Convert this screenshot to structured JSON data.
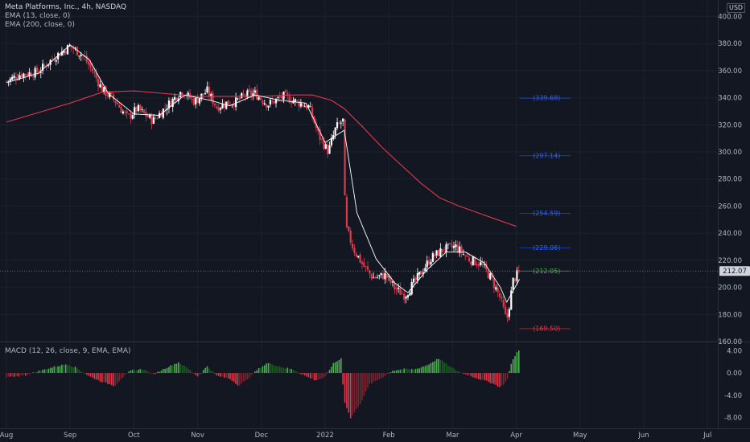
{
  "header": {
    "title": "Meta Platforms, Inc., 4h, NASDAQ",
    "ema13": "EMA (13, close, 0)",
    "ema200": "EMA (200, close, 0)",
    "currency": "USD"
  },
  "chart_data": [
    {
      "type": "candlestick",
      "title": "Meta Platforms, Inc., 4h, NASDAQ",
      "series": [
        {
          "name": "EMA (13, close, 0)",
          "color": "#ffffff"
        },
        {
          "name": "EMA (200, close, 0)",
          "color": "#e0384b"
        }
      ],
      "x_ticks": [
        "Aug",
        "Sep",
        "Oct",
        "Nov",
        "Dec",
        "2022",
        "Feb",
        "Mar",
        "Apr",
        "May",
        "Jun",
        "Jul"
      ],
      "y_ticks": [
        "400.00",
        "380.00",
        "360.00",
        "340.00",
        "320.00",
        "300.00",
        "280.00",
        "260.00",
        "240.00",
        "220.00",
        "200.00",
        "180.00",
        "160.00"
      ],
      "ylim": [
        160,
        405
      ],
      "last_price": "212.07",
      "close_anchors": [
        {
          "m": 0.0,
          "v": 352
        },
        {
          "m": 0.2,
          "v": 357
        },
        {
          "m": 0.5,
          "v": 359
        },
        {
          "m": 0.75,
          "v": 370
        },
        {
          "m": 1.0,
          "v": 378
        },
        {
          "m": 1.2,
          "v": 371
        },
        {
          "m": 1.35,
          "v": 360
        },
        {
          "m": 1.5,
          "v": 346
        },
        {
          "m": 1.7,
          "v": 338
        },
        {
          "m": 1.9,
          "v": 325
        },
        {
          "m": 2.05,
          "v": 332
        },
        {
          "m": 2.3,
          "v": 323
        },
        {
          "m": 2.5,
          "v": 333
        },
        {
          "m": 2.75,
          "v": 345
        },
        {
          "m": 2.95,
          "v": 337
        },
        {
          "m": 3.15,
          "v": 345
        },
        {
          "m": 3.3,
          "v": 333
        },
        {
          "m": 3.45,
          "v": 336
        },
        {
          "m": 3.6,
          "v": 337
        },
        {
          "m": 3.75,
          "v": 342
        },
        {
          "m": 3.9,
          "v": 343
        },
        {
          "m": 4.1,
          "v": 335
        },
        {
          "m": 4.35,
          "v": 341
        },
        {
          "m": 4.55,
          "v": 337
        },
        {
          "m": 4.75,
          "v": 333
        },
        {
          "m": 4.9,
          "v": 312
        },
        {
          "m": 5.05,
          "v": 300
        },
        {
          "m": 5.17,
          "v": 318
        },
        {
          "m": 5.28,
          "v": 323
        },
        {
          "m": 5.32,
          "v": 245
        },
        {
          "m": 5.45,
          "v": 228
        },
        {
          "m": 5.6,
          "v": 216
        },
        {
          "m": 5.75,
          "v": 207
        },
        {
          "m": 5.95,
          "v": 209
        },
        {
          "m": 6.1,
          "v": 199
        },
        {
          "m": 6.25,
          "v": 194
        },
        {
          "m": 6.45,
          "v": 207
        },
        {
          "m": 6.65,
          "v": 221
        },
        {
          "m": 6.85,
          "v": 228
        },
        {
          "m": 7.05,
          "v": 230
        },
        {
          "m": 7.25,
          "v": 221
        },
        {
          "m": 7.45,
          "v": 217
        },
        {
          "m": 7.6,
          "v": 207
        },
        {
          "m": 7.75,
          "v": 192
        },
        {
          "m": 7.85,
          "v": 175
        },
        {
          "m": 7.95,
          "v": 205
        },
        {
          "m": 8.05,
          "v": 212
        }
      ],
      "ema200_anchors": [
        {
          "m": 0.0,
          "v": 322
        },
        {
          "m": 0.5,
          "v": 329
        },
        {
          "m": 1.0,
          "v": 336
        },
        {
          "m": 1.5,
          "v": 344
        },
        {
          "m": 2.0,
          "v": 345
        },
        {
          "m": 2.5,
          "v": 343
        },
        {
          "m": 3.0,
          "v": 341
        },
        {
          "m": 3.5,
          "v": 341
        },
        {
          "m": 4.0,
          "v": 341
        },
        {
          "m": 4.5,
          "v": 342
        },
        {
          "m": 4.8,
          "v": 342
        },
        {
          "m": 5.1,
          "v": 338
        },
        {
          "m": 5.3,
          "v": 332
        },
        {
          "m": 5.6,
          "v": 318
        },
        {
          "m": 5.9,
          "v": 303
        },
        {
          "m": 6.2,
          "v": 290
        },
        {
          "m": 6.5,
          "v": 277
        },
        {
          "m": 6.8,
          "v": 266
        },
        {
          "m": 7.1,
          "v": 260
        },
        {
          "m": 7.4,
          "v": 255
        },
        {
          "m": 7.7,
          "v": 250
        },
        {
          "m": 8.0,
          "v": 245
        }
      ],
      "ema13_anchors": [
        {
          "m": 0.0,
          "v": 351
        },
        {
          "m": 0.5,
          "v": 358
        },
        {
          "m": 1.0,
          "v": 379
        },
        {
          "m": 1.3,
          "v": 368
        },
        {
          "m": 1.6,
          "v": 343
        },
        {
          "m": 2.0,
          "v": 328
        },
        {
          "m": 2.4,
          "v": 327
        },
        {
          "m": 2.8,
          "v": 342
        },
        {
          "m": 3.2,
          "v": 338
        },
        {
          "m": 3.5,
          "v": 334
        },
        {
          "m": 3.9,
          "v": 342
        },
        {
          "m": 4.3,
          "v": 338
        },
        {
          "m": 4.7,
          "v": 336
        },
        {
          "m": 5.0,
          "v": 307
        },
        {
          "m": 5.2,
          "v": 313
        },
        {
          "m": 5.3,
          "v": 316
        },
        {
          "m": 5.5,
          "v": 255
        },
        {
          "m": 5.8,
          "v": 221
        },
        {
          "m": 6.1,
          "v": 203
        },
        {
          "m": 6.3,
          "v": 196
        },
        {
          "m": 6.6,
          "v": 213
        },
        {
          "m": 6.9,
          "v": 226
        },
        {
          "m": 7.2,
          "v": 226
        },
        {
          "m": 7.5,
          "v": 218
        },
        {
          "m": 7.75,
          "v": 200
        },
        {
          "m": 7.85,
          "v": 189
        },
        {
          "m": 8.05,
          "v": 206
        }
      ],
      "fib_levels": [
        {
          "label": "(339.68)",
          "value": 339.68,
          "color": "#2962ff"
        },
        {
          "label": "(297.14)",
          "value": 297.14,
          "color": "#2962ff"
        },
        {
          "label": "(254.59)",
          "value": 254.59,
          "color": "#2962ff"
        },
        {
          "label": "(229.06)",
          "value": 229.06,
          "color": "#2962ff"
        },
        {
          "label": "(212.05)",
          "value": 212.05,
          "color": "#4caf50"
        },
        {
          "label": "(169.50)",
          "value": 169.5,
          "color": "#f23645"
        }
      ],
      "fib_x_range": [
        8.05,
        8.85
      ]
    },
    {
      "type": "histogram",
      "title": "MACD (12, 26, close, 9, EMA, EMA)",
      "y_ticks": [
        "4.00",
        "0.00",
        "-4.00",
        "-8.00"
      ],
      "ylim": [
        -9.5,
        5.2
      ],
      "anchors": [
        {
          "m": 0.0,
          "v": -0.8
        },
        {
          "m": 0.3,
          "v": -0.4
        },
        {
          "m": 0.5,
          "v": 0.3
        },
        {
          "m": 0.75,
          "v": 1.1
        },
        {
          "m": 0.95,
          "v": 1.6
        },
        {
          "m": 1.1,
          "v": 0.9
        },
        {
          "m": 1.3,
          "v": -0.6
        },
        {
          "m": 1.5,
          "v": -1.6
        },
        {
          "m": 1.7,
          "v": -2.3
        },
        {
          "m": 1.8,
          "v": -1.0
        },
        {
          "m": 1.95,
          "v": 0.4
        },
        {
          "m": 2.15,
          "v": 0.7
        },
        {
          "m": 2.3,
          "v": -0.3
        },
        {
          "m": 2.5,
          "v": 0.9
        },
        {
          "m": 2.7,
          "v": 1.9
        },
        {
          "m": 2.85,
          "v": 0.8
        },
        {
          "m": 3.0,
          "v": -0.6
        },
        {
          "m": 3.15,
          "v": 1.2
        },
        {
          "m": 3.3,
          "v": -0.5
        },
        {
          "m": 3.5,
          "v": -1.0
        },
        {
          "m": 3.65,
          "v": -2.3
        },
        {
          "m": 3.78,
          "v": -1.1
        },
        {
          "m": 3.95,
          "v": 0.7
        },
        {
          "m": 4.1,
          "v": 1.8
        },
        {
          "m": 4.3,
          "v": 1.1
        },
        {
          "m": 4.5,
          "v": 0.6
        },
        {
          "m": 4.7,
          "v": -0.6
        },
        {
          "m": 4.85,
          "v": -1.3
        },
        {
          "m": 5.0,
          "v": -0.8
        },
        {
          "m": 5.12,
          "v": 1.6
        },
        {
          "m": 5.25,
          "v": 2.6
        },
        {
          "m": 5.3,
          "v": -5.0
        },
        {
          "m": 5.4,
          "v": -8.1
        },
        {
          "m": 5.55,
          "v": -5.5
        },
        {
          "m": 5.7,
          "v": -2.0
        },
        {
          "m": 5.9,
          "v": -0.8
        },
        {
          "m": 6.05,
          "v": 0.4
        },
        {
          "m": 6.25,
          "v": 0.7
        },
        {
          "m": 6.4,
          "v": 0.6
        },
        {
          "m": 6.6,
          "v": 1.4
        },
        {
          "m": 6.78,
          "v": 2.6
        },
        {
          "m": 6.95,
          "v": 1.2
        },
        {
          "m": 7.1,
          "v": 0.2
        },
        {
          "m": 7.25,
          "v": -0.4
        },
        {
          "m": 7.45,
          "v": -1.2
        },
        {
          "m": 7.62,
          "v": -1.8
        },
        {
          "m": 7.75,
          "v": -2.6
        },
        {
          "m": 7.85,
          "v": -1.4
        },
        {
          "m": 7.92,
          "v": 1.6
        },
        {
          "m": 8.0,
          "v": 3.6
        },
        {
          "m": 8.05,
          "v": 4.1
        }
      ]
    }
  ]
}
